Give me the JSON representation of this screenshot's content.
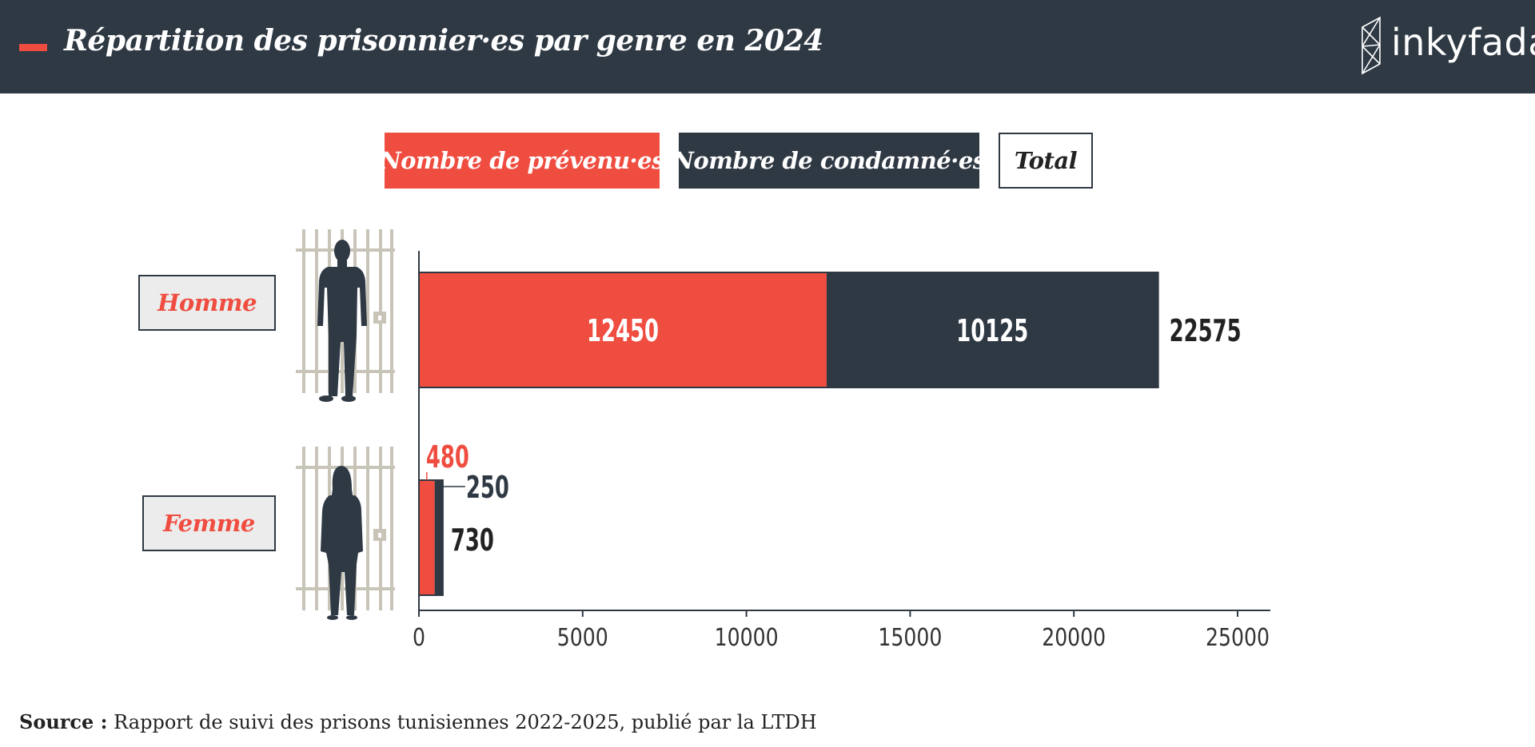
{
  "header": {
    "title": "Répartition des prisonnier·es par genre en 2024",
    "logo": "inkyfada"
  },
  "legend": {
    "prevenus": "Nombre de prévenu·es",
    "condamnes": "Nombre de condamné·es",
    "total": "Total"
  },
  "chart_data": {
    "type": "bar",
    "orientation": "horizontal",
    "stacked": true,
    "categories": [
      "Homme",
      "Femme"
    ],
    "series": [
      {
        "name": "Nombre de prévenu·es",
        "values": [
          12450,
          480
        ],
        "color": "#f04d41"
      },
      {
        "name": "Nombre de condamné·es",
        "values": [
          10125,
          250
        ],
        "color": "#2f3944"
      }
    ],
    "totals": [
      22575,
      730
    ],
    "xlim": [
      0,
      26000
    ],
    "xticks": [
      0,
      5000,
      10000,
      15000,
      20000,
      25000
    ],
    "grid": false,
    "legend_position": "top"
  },
  "source": {
    "label": "Source :",
    "text": "Rapport de suivi des prisons tunisiennes 2022-2025, publié par la LTDH"
  },
  "colors": {
    "accent": "#f04d41",
    "dark": "#2f3944",
    "bars_of_cell": "#c8c4b8"
  },
  "icons": [
    "man-silhouette-icon",
    "woman-silhouette-icon",
    "prison-bars-icon",
    "inkyfada-logo-icon"
  ]
}
